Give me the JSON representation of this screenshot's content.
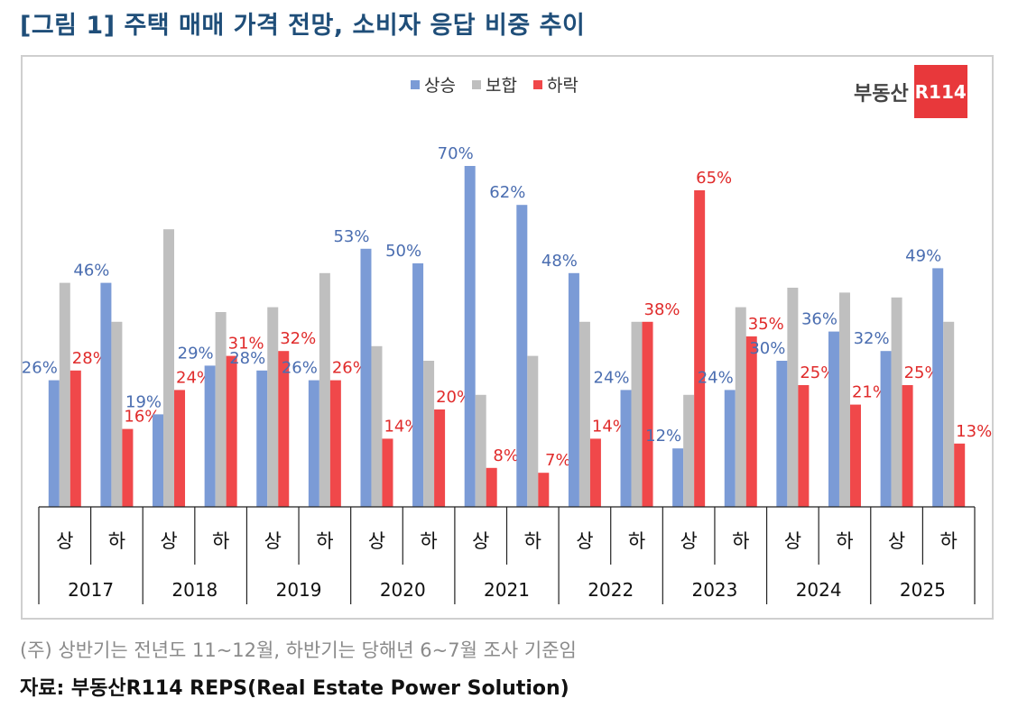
{
  "title": "[그림 1] 주택 매매 가격 전망, 소비자 응답 비중 추이",
  "legend": {
    "rise": "상승",
    "flat": "보합",
    "fall": "하락"
  },
  "logo": {
    "text": "부동산",
    "mark": "R114"
  },
  "note": "(주) 상반기는 전년도 11~12월, 하반기는 당해년 6~7월 조사 기준임",
  "source": "자료: 부동산R114 REPS(Real Estate Power Solution)",
  "colors": {
    "rise": "#7b9bd6",
    "flat": "#bfbfbf",
    "fall": "#f0484a",
    "rise_label": "#4a6db0",
    "fall_label": "#e02b2b"
  },
  "chart_data": {
    "type": "bar",
    "title": "주택 매매 가격 전망, 소비자 응답 비중 추이",
    "years": [
      "2017",
      "2018",
      "2019",
      "2020",
      "2021",
      "2022",
      "2023",
      "2024",
      "2025"
    ],
    "halves": [
      "상",
      "하"
    ],
    "categories": [
      "2017 상",
      "2017 하",
      "2018 상",
      "2018 하",
      "2019 상",
      "2019 하",
      "2020 상",
      "2020 하",
      "2021 상",
      "2021 하",
      "2022 상",
      "2022 하",
      "2023 상",
      "2023 하",
      "2024 상",
      "2024 하",
      "2025 상",
      "2025 하"
    ],
    "series": [
      {
        "name": "상승",
        "values": [
          26,
          46,
          19,
          29,
          28,
          26,
          53,
          50,
          70,
          62,
          48,
          24,
          12,
          24,
          30,
          36,
          32,
          49
        ],
        "labeled": true
      },
      {
        "name": "보합",
        "values": [
          46,
          38,
          57,
          40,
          41,
          48,
          33,
          30,
          23,
          31,
          38,
          38,
          23,
          41,
          45,
          44,
          43,
          38
        ],
        "labeled": false
      },
      {
        "name": "하락",
        "values": [
          28,
          16,
          24,
          31,
          32,
          26,
          14,
          20,
          8,
          7,
          14,
          38,
          65,
          35,
          25,
          21,
          25,
          13
        ],
        "labeled": true
      }
    ],
    "value_suffix": "%",
    "ylim": [
      0,
      75
    ]
  }
}
